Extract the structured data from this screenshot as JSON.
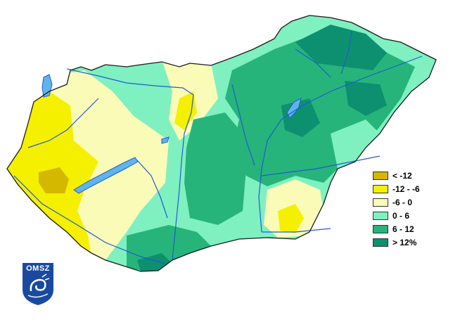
{
  "legend": {
    "items": [
      {
        "label": "< -12",
        "color": "#d4b800"
      },
      {
        "label": "-12 - -6",
        "color": "#f4f000"
      },
      {
        "label": "-6 - 0",
        "color": "#fbfbb8"
      },
      {
        "label": "0 - 6",
        "color": "#7ff0c0"
      },
      {
        "label": "6 - 12",
        "color": "#26b47a"
      },
      {
        "label": "> 12%",
        "color": "#0d9070"
      }
    ]
  },
  "logo": {
    "text": "OMSZ",
    "color": "#1a4aa0"
  },
  "colors": {
    "border": "#1a1a1a",
    "river": "#1f5bd6",
    "lake": "#5fb5e8"
  }
}
